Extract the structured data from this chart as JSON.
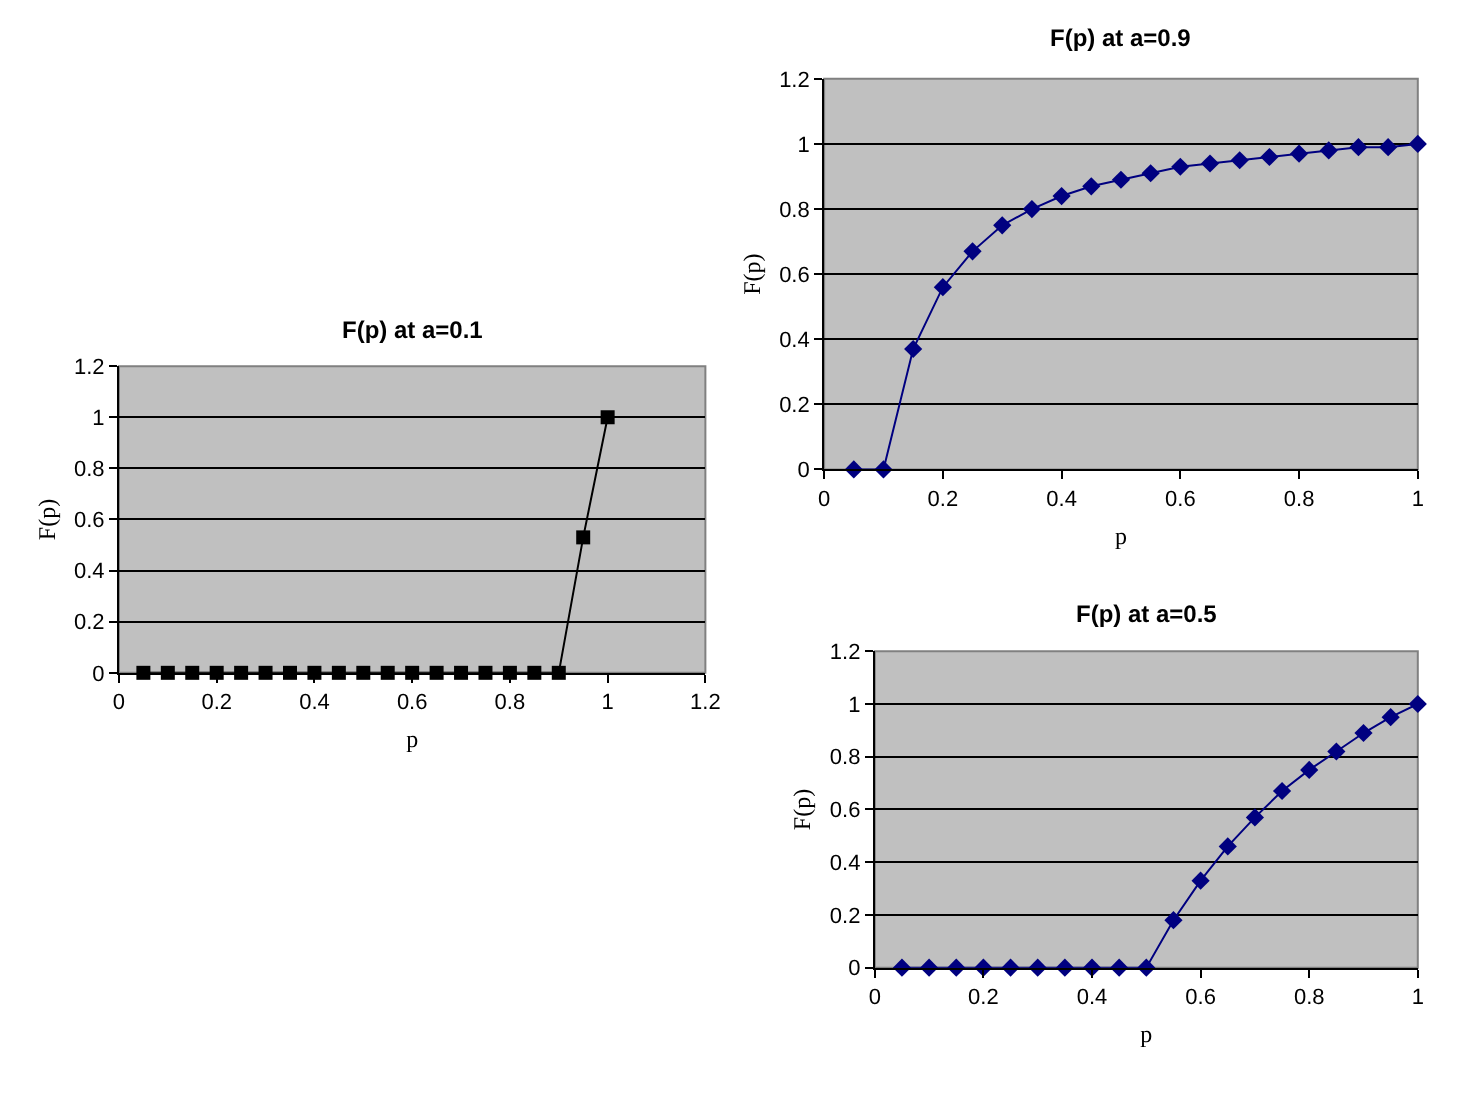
{
  "chart_data": [
    {
      "type": "line",
      "title": "F(p) at a=0.1",
      "xlabel": "p",
      "ylabel": "F(p)",
      "marker": "square",
      "grid": "y",
      "x": [
        0.05,
        0.1,
        0.15,
        0.2,
        0.25,
        0.3,
        0.35,
        0.4,
        0.45,
        0.5,
        0.55,
        0.6,
        0.65,
        0.7,
        0.75,
        0.8,
        0.85,
        0.9,
        0.95,
        1.0
      ],
      "series": [
        {
          "color": "#000000",
          "values": [
            0,
            0,
            0,
            0,
            0,
            0,
            0,
            0,
            0,
            0,
            0,
            0,
            0,
            0,
            0,
            0,
            0,
            0,
            0.53,
            1.0
          ]
        }
      ],
      "xlim": [
        0,
        1.2
      ],
      "xticks": [
        0,
        0.2,
        0.4,
        0.6,
        0.8,
        1,
        1.2
      ],
      "ylim": [
        0,
        1.2
      ],
      "yticks": [
        0,
        0.2,
        0.4,
        0.6,
        0.8,
        1,
        1.2
      ]
    },
    {
      "type": "line",
      "title": "F(p) at a=0.9",
      "xlabel": "p",
      "ylabel": "F(p)",
      "marker": "diamond",
      "grid": "y",
      "x": [
        0.05,
        0.1,
        0.15,
        0.2,
        0.25,
        0.3,
        0.35,
        0.4,
        0.45,
        0.5,
        0.55,
        0.6,
        0.65,
        0.7,
        0.75,
        0.8,
        0.85,
        0.9,
        0.95,
        1.0
      ],
      "series": [
        {
          "color": "#000080",
          "values": [
            0,
            0,
            0.37,
            0.56,
            0.67,
            0.75,
            0.8,
            0.84,
            0.87,
            0.89,
            0.91,
            0.93,
            0.94,
            0.95,
            0.96,
            0.97,
            0.98,
            0.99,
            0.99,
            1.0
          ]
        }
      ],
      "xlim": [
        0,
        1
      ],
      "xticks": [
        0,
        0.2,
        0.4,
        0.6,
        0.8,
        1
      ],
      "ylim": [
        0,
        1.2
      ],
      "yticks": [
        0,
        0.2,
        0.4,
        0.6,
        0.8,
        1,
        1.2
      ]
    },
    {
      "type": "line",
      "title": "F(p) at a=0.5",
      "xlabel": "p",
      "ylabel": "F(p)",
      "marker": "diamond",
      "grid": "y",
      "x": [
        0.05,
        0.1,
        0.15,
        0.2,
        0.25,
        0.3,
        0.35,
        0.4,
        0.45,
        0.5,
        0.55,
        0.6,
        0.65,
        0.7,
        0.75,
        0.8,
        0.85,
        0.9,
        0.95,
        1.0
      ],
      "series": [
        {
          "color": "#000080",
          "values": [
            0,
            0,
            0,
            0,
            0,
            0,
            0,
            0,
            0,
            0,
            0.18,
            0.33,
            0.46,
            0.57,
            0.67,
            0.75,
            0.82,
            0.89,
            0.95,
            1.0
          ]
        }
      ],
      "xlim": [
        0,
        1
      ],
      "xticks": [
        0,
        0.2,
        0.4,
        0.6,
        0.8,
        1
      ],
      "ylim": [
        0,
        1.2
      ],
      "yticks": [
        0,
        0.2,
        0.4,
        0.6,
        0.8,
        1,
        1.2
      ]
    }
  ]
}
